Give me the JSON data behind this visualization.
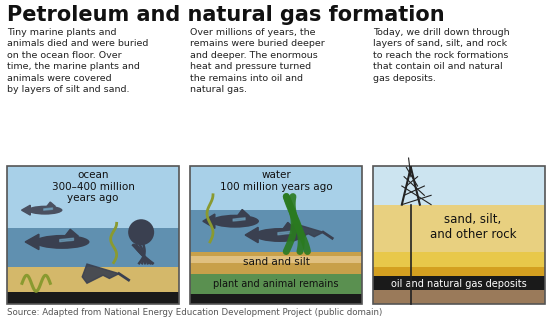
{
  "title": "Petroleum and natural gas formation",
  "title_fontsize": 15,
  "bg_color": "#ffffff",
  "source_text": "Source: Adapted from National Energy Education Development Project (public domain)",
  "desc1": "Tiny marine plants and\nanimals died and were buried\non the ocean floor. Over\ntime, the marine plants and\nanimals were covered\nby layers of silt and sand.",
  "desc2": "Over millions of years, the\nremains were buried deeper\nand deeper. The enormous\nheat and pressure turned\nthe remains into oil and\nnatural gas.",
  "desc3": "Today, we drill down through\nlayers of sand, silt, and rock\nto reach the rock formations\nthat contain oil and natural\ngas deposits.",
  "panel1_label": "ocean\n300–400 million\nyears ago",
  "panel2_label": "water\n100 million years ago",
  "panel3_label1": "sand, silt,\nand other rock",
  "panel3_label2": "oil and natural gas deposits",
  "panel2_sand": "sand and silt",
  "panel2_plant": "plant and animal remains",
  "water_color1": "#7aafc8",
  "water_color2": "#6090b0",
  "water_surface": "#a8d0e8",
  "sand_color1": "#d4b86a",
  "sand_color2": "#c8a04a",
  "plant_color": "#5a9050",
  "black_color": "#1a1a1a",
  "sky_color": "#cce4f0",
  "yellow_color": "#e8c84a",
  "gold_color": "#d4a020",
  "brown_color": "#9a7a5a",
  "dark_animal": "#3a4050",
  "border_color": "#555555",
  "text_dark": "#222222",
  "text_light": "#ffffff"
}
